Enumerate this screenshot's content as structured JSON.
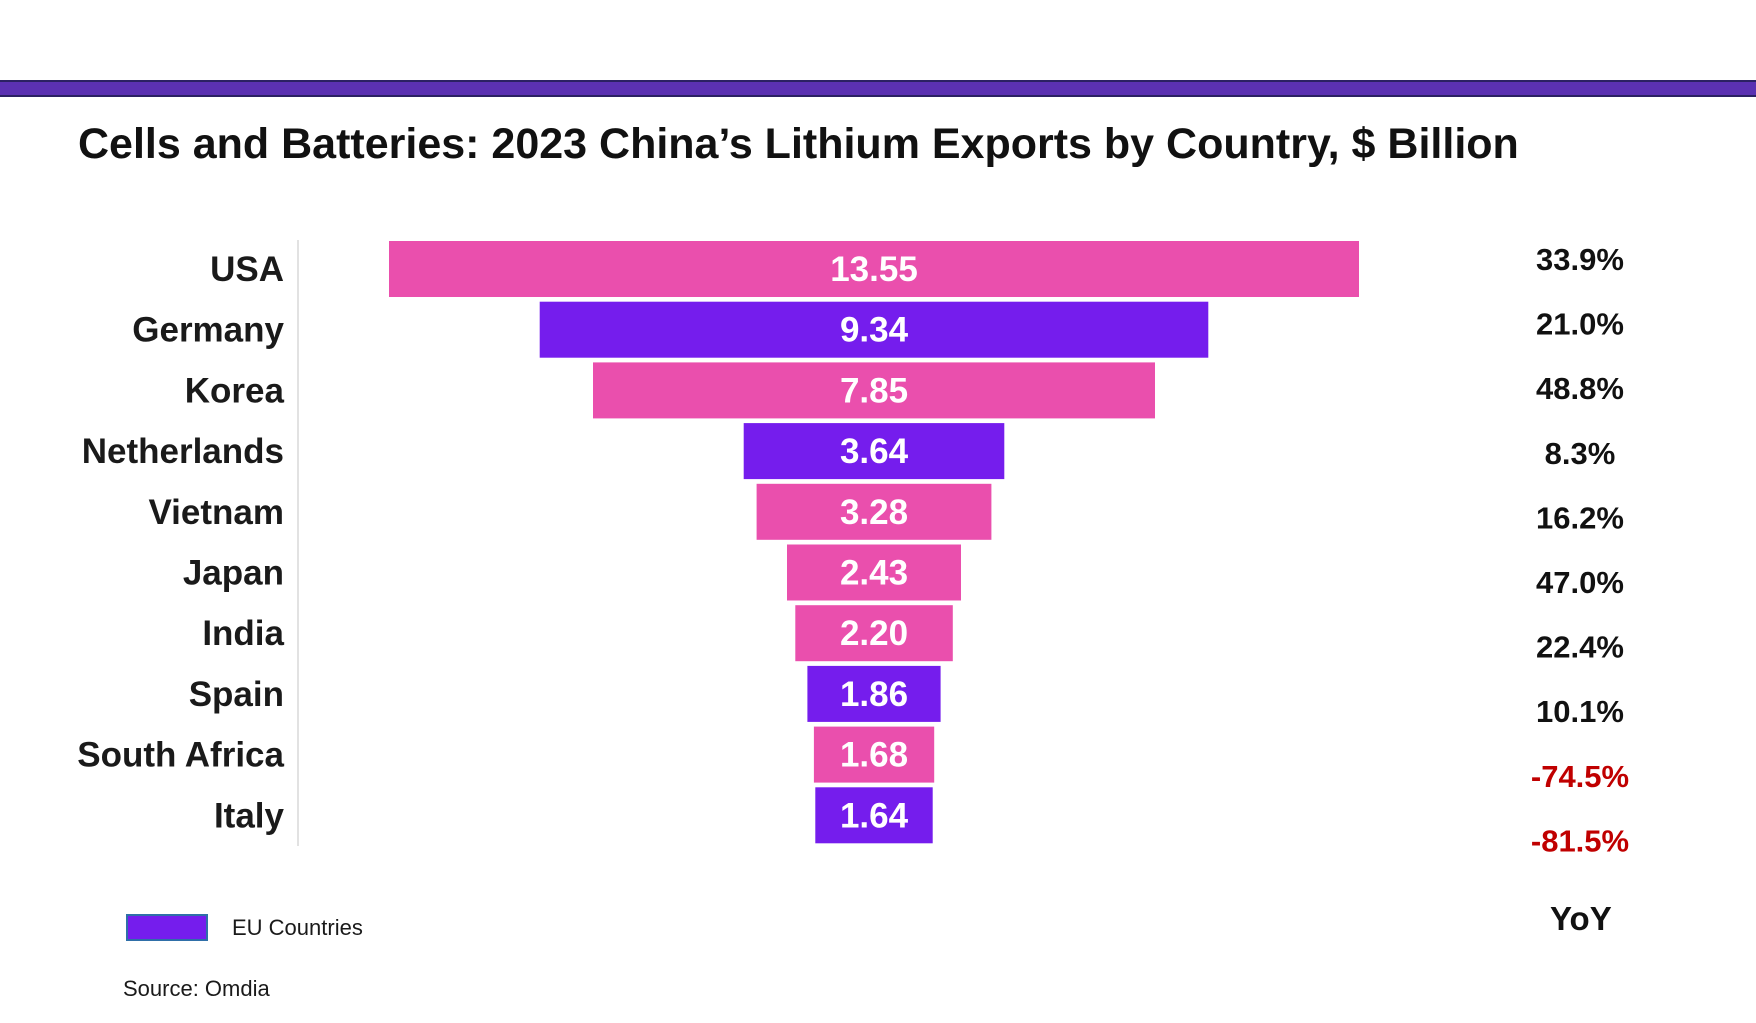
{
  "chart_data": {
    "type": "bar",
    "title": "Cells and Batteries: 2023 China’s Lithium Exports by Country, $ Billion",
    "categories": [
      "USA",
      "Germany",
      "Korea",
      "Netherlands",
      "Vietnam",
      "Japan",
      "India",
      "Spain",
      "South Africa",
      "Italy"
    ],
    "values": [
      13.55,
      9.34,
      7.85,
      3.64,
      3.28,
      2.43,
      2.2,
      1.86,
      1.68,
      1.64
    ],
    "value_labels": [
      "13.55",
      "9.34",
      "7.85",
      "3.64",
      "3.28",
      "2.43",
      "2.20",
      "1.86",
      "1.68",
      "1.64"
    ],
    "eu_country": [
      false,
      true,
      false,
      true,
      false,
      false,
      false,
      true,
      false,
      true
    ],
    "yoy": [
      "33.9%",
      "21.0%",
      "48.8%",
      "8.3%",
      "16.2%",
      "47.0%",
      "22.4%",
      "10.1%",
      "-74.5%",
      "-81.5%"
    ],
    "yoy_header": "YoY",
    "layout": "funnel, bars centered",
    "legend": {
      "label": "EU Countries",
      "placement": "bottom-left"
    },
    "source": "Source: Omdia",
    "colors": {
      "non_eu": "#ea4fad",
      "eu": "#751ded",
      "accent_band": "#5b31b2",
      "yoy_positive": "#111111",
      "yoy_negative": "#c00000"
    }
  }
}
